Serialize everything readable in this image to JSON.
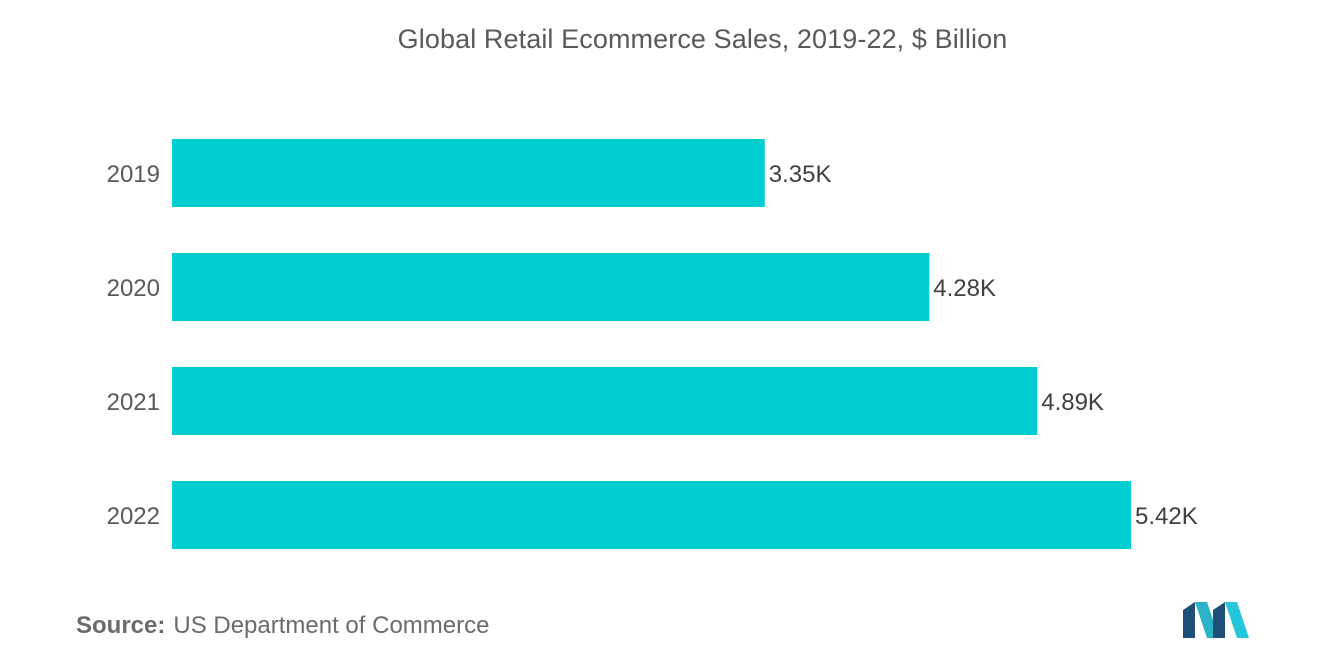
{
  "title": "Global Retail Ecommerce Sales, 2019-22, $ Billion",
  "source": {
    "label": "Source:",
    "text": "US Department of Commerce"
  },
  "logo": {
    "icon": "mordor-intelligence-logo",
    "colors": [
      "#1f4e79",
      "#2ab3c6",
      "#26c6da"
    ]
  },
  "colors": {
    "bar": "#00CED1",
    "title": "#595959",
    "label": "#595959"
  },
  "chart_data": {
    "type": "bar",
    "orientation": "horizontal",
    "title": "Global Retail Ecommerce Sales, 2019-22, $ Billion",
    "categories": [
      "2019",
      "2020",
      "2021",
      "2022"
    ],
    "values": [
      3350,
      4280,
      4890,
      5420
    ],
    "data_labels": [
      "3.35K",
      "4.28K",
      "4.89K",
      "5.42K"
    ],
    "xlim": [
      0,
      5420
    ],
    "grid": false,
    "legend": "none",
    "xlabel": "",
    "ylabel": ""
  }
}
